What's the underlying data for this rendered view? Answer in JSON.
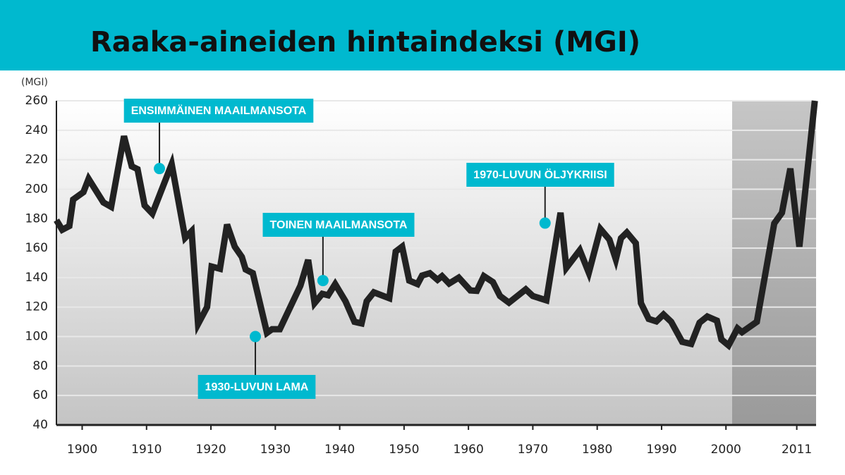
{
  "chart_data": {
    "type": "line",
    "title": "Raaka-aineiden hintaindeksi (MGI)",
    "y_label": "(MGI)",
    "color": "#222222",
    "accent_color": "#00b9cf",
    "x": [
      1896,
      1896.9,
      1898,
      1898.6,
      1900.2,
      1901,
      1903.3,
      1904.5,
      1906.5,
      1907.7,
      1908.6,
      1909.7,
      1910.9,
      1913.9,
      1916,
      1917,
      1918,
      1919.4,
      1920.1,
      1921.4,
      1922.5,
      1923.7,
      1924.8,
      1925.4,
      1926.5,
      1928.7,
      1929.5,
      1930.7,
      1933.9,
      1935.1,
      1936.1,
      1937.3,
      1938.2,
      1939.3,
      1940.9,
      1942.3,
      1943.4,
      1944.2,
      1945.3,
      1947.7,
      1948.7,
      1949.7,
      1950.8,
      1952.1,
      1952.8,
      1954,
      1955.2,
      1955.9,
      1957,
      1958.5,
      1960.3,
      1961.3,
      1962.4,
      1963.8,
      1964.9,
      1966.3,
      1968.9,
      1970,
      1972.1,
      1974.3,
      1975.2,
      1977.3,
      1978.7,
      1980.5,
      1981.9,
      1982.9,
      1983.7,
      1984.6,
      1986,
      1986.8,
      1988,
      1989.2,
      1990.3,
      1991.5,
      1993.2,
      1994.6,
      1995.9,
      1997.1,
      1998.6,
      1999.3,
      2000.4,
      2001.8,
      2002.5,
      2004.8,
      2007.5,
      2008.7,
      2010,
      2011.4,
      2013.8
    ],
    "values": [
      179,
      172.5,
      175,
      193,
      198,
      207,
      191,
      188,
      236,
      215.5,
      213.6,
      189,
      183.5,
      217,
      167,
      171.5,
      108.5,
      120,
      147.5,
      146,
      176,
      161,
      154,
      145.5,
      143,
      102.5,
      105,
      105,
      134.5,
      152,
      122.7,
      129,
      128,
      135.6,
      124,
      110,
      108.9,
      124,
      130,
      126,
      157.7,
      161,
      138,
      135.6,
      141.4,
      143,
      138.5,
      141,
      136,
      140,
      131.3,
      131,
      141,
      137,
      127.5,
      123,
      132,
      127.5,
      124.6,
      184,
      146.6,
      158.6,
      143.3,
      173,
      165.8,
      152.4,
      166.7,
      170.6,
      163.4,
      122.7,
      112,
      110.3,
      115,
      110,
      96.4,
      95,
      109.4,
      113.6,
      110.8,
      98,
      94,
      105.5,
      103,
      110,
      176.8,
      184,
      214,
      161,
      260
    ],
    "xlim": [
      1896,
      2014
    ],
    "xticks": [
      1900,
      1910,
      1920,
      1930,
      1940,
      1950,
      1960,
      1970,
      1980,
      1990,
      2000,
      2011
    ],
    "ylim": [
      40,
      260
    ],
    "yticks": [
      40,
      60,
      80,
      100,
      120,
      140,
      160,
      180,
      200,
      220,
      240,
      260
    ],
    "grid": true,
    "annotations": [
      {
        "text": "ENSIMMÄINEN MAAILMANSOTA",
        "x": 1912,
        "y": 214
      },
      {
        "text": "1930-LUVUN LAMA",
        "x": 1926.9,
        "y": 100
      },
      {
        "text": "TOINEN MAAILMANSOTA",
        "x": 1937.4,
        "y": 138
      },
      {
        "text": "1970-LUVUN ÖLJYKRIISI",
        "x": 1971.9,
        "y": 177
      }
    ]
  }
}
